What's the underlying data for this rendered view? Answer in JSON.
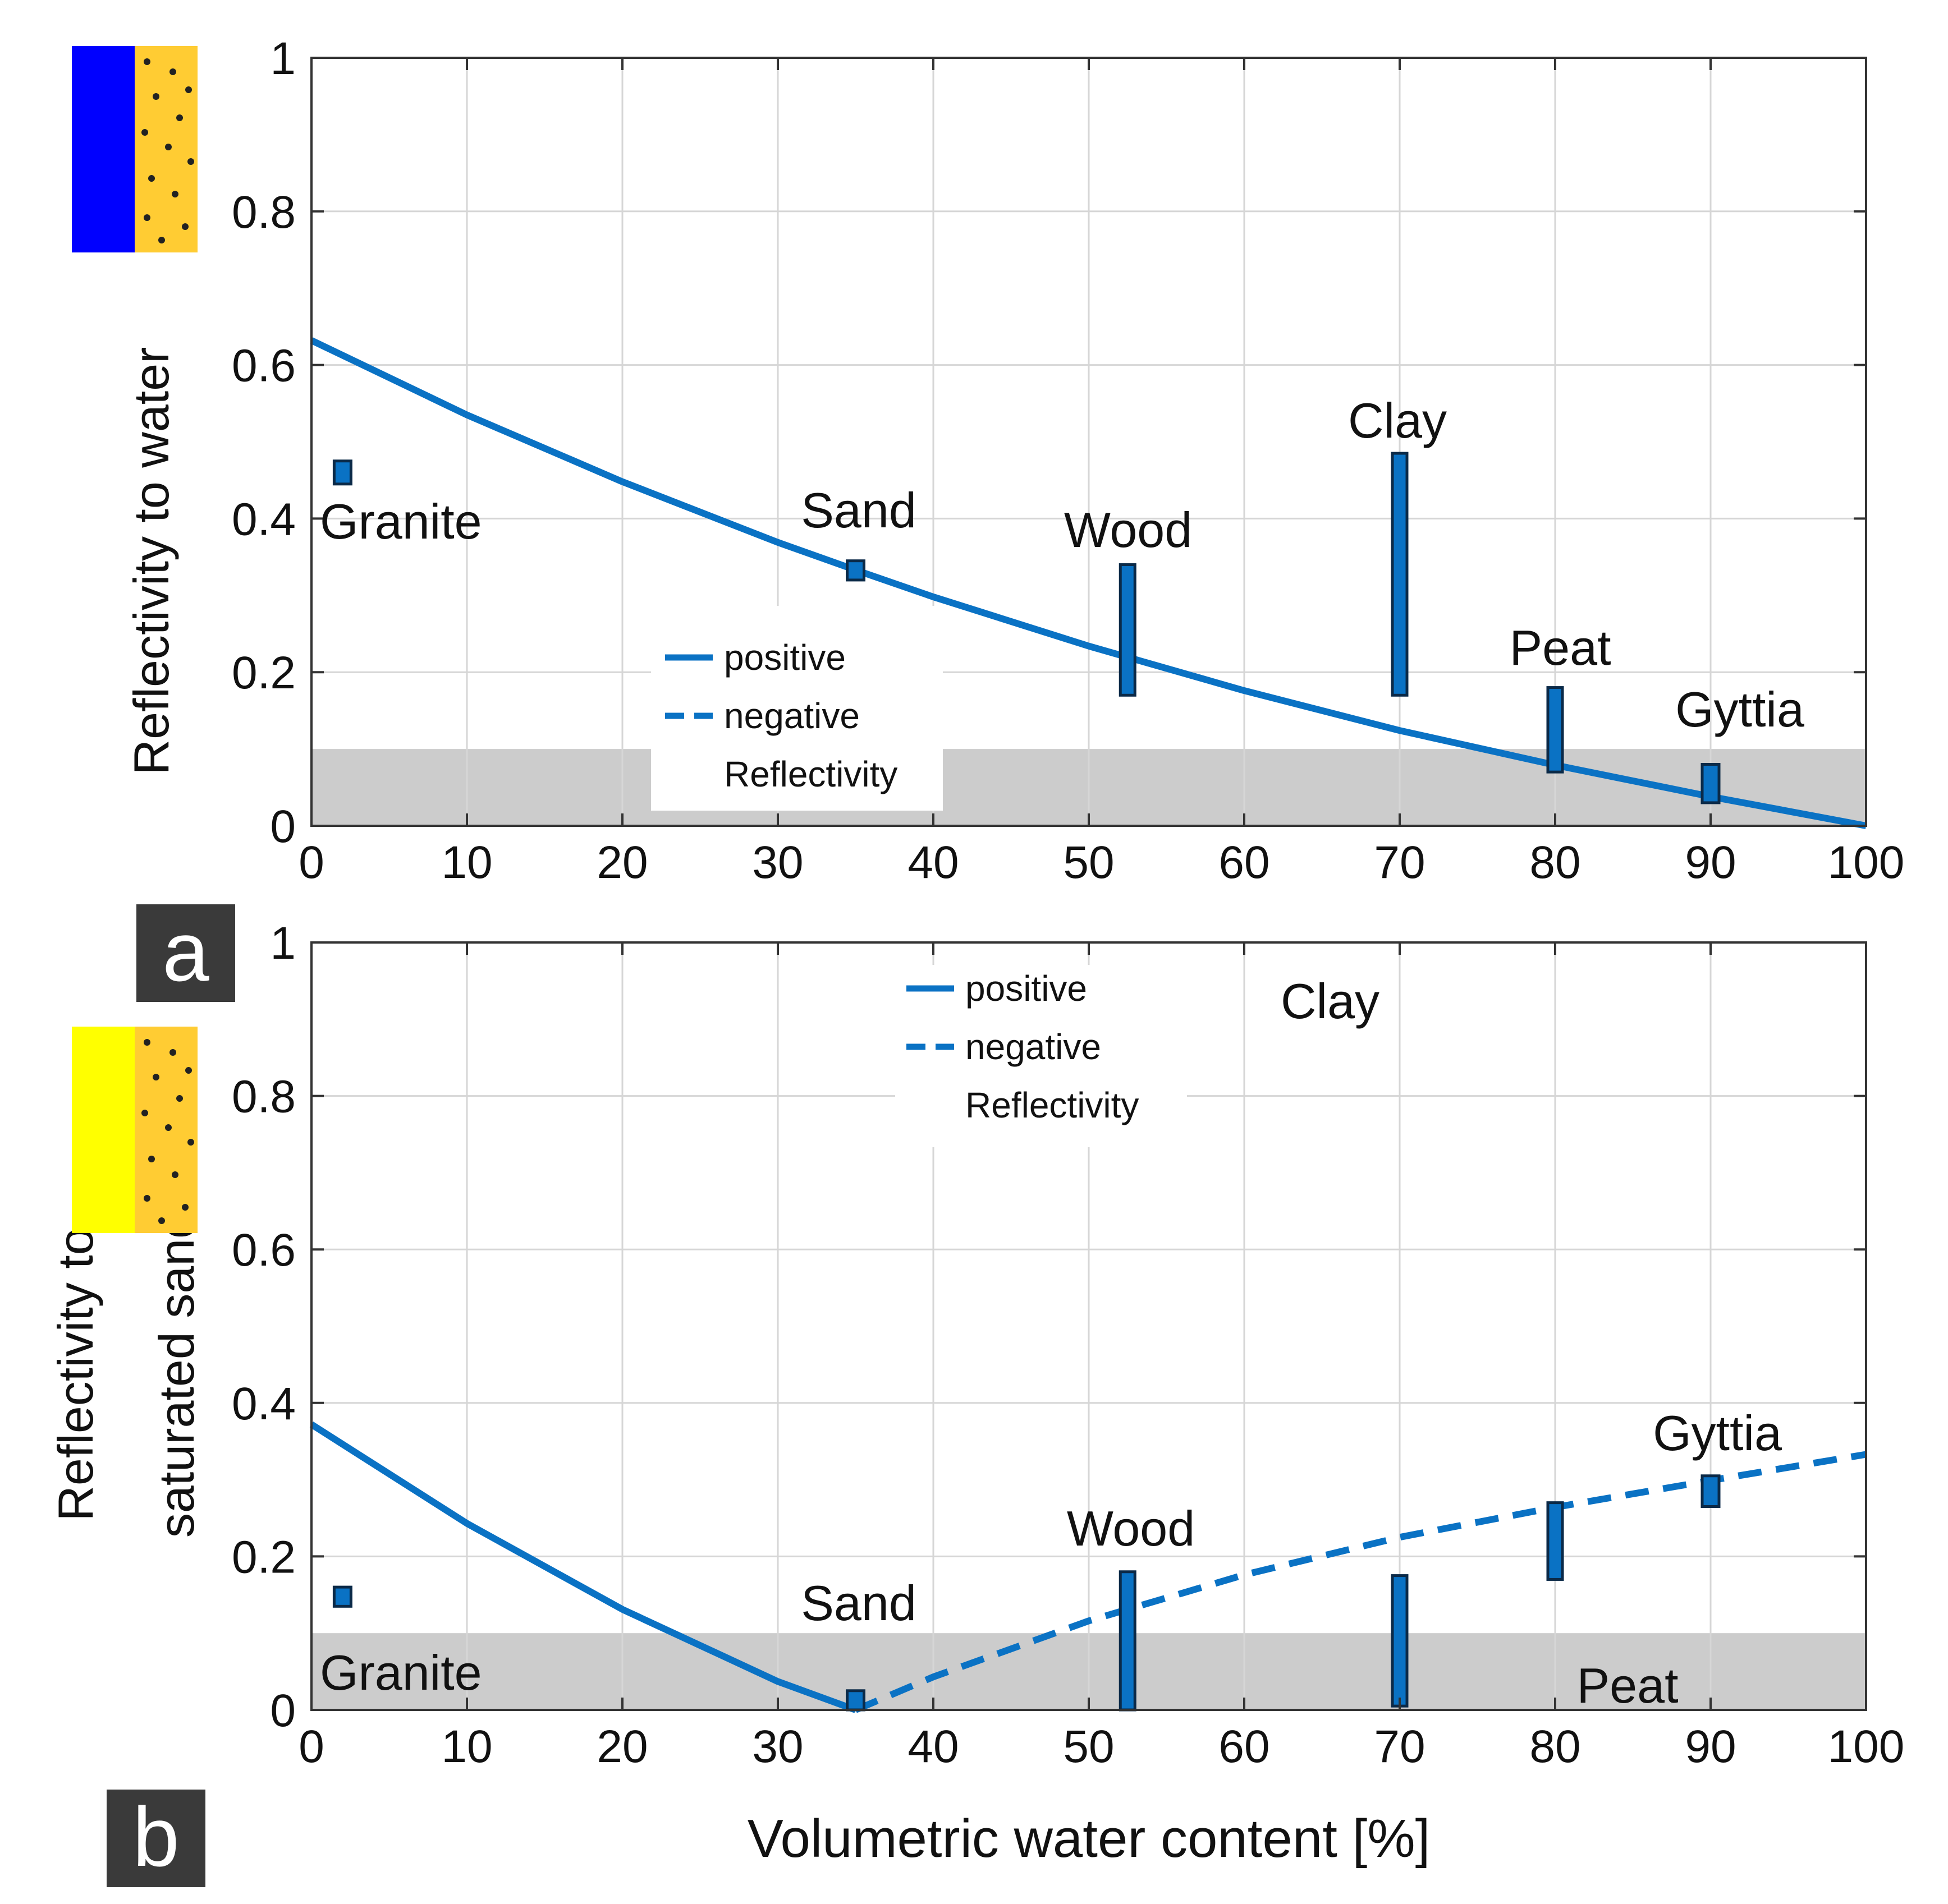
{
  "colors": {
    "curve": "#0a72c4",
    "marker_fill": "#0a72c4",
    "marker_stroke": "#0b2a48",
    "band": "#cccccc",
    "grid": "#d6d6d6",
    "water": "#0000ff",
    "sand": "#ffcc33",
    "saturated_sand": "#ffff00",
    "panel_tag": "#3a3a3a"
  },
  "chart_data": [
    {
      "type": "line",
      "panel": "a",
      "panel_label": "a",
      "ylabel": "Reflectivity to water",
      "xlabel": "",
      "xlim": [
        0,
        100
      ],
      "ylim": [
        0,
        1
      ],
      "xticks": [
        0,
        10,
        20,
        30,
        40,
        50,
        60,
        70,
        80,
        90,
        100
      ],
      "yticks": [
        0,
        0.2,
        0.4,
        0.6,
        0.8,
        1
      ],
      "ytick_labels": [
        "0",
        "0.2",
        "0.4",
        "0.6",
        "0.8",
        "1"
      ],
      "grid": true,
      "band": [
        0,
        0.1
      ],
      "legend": {
        "placement": "lower-center",
        "entries": [
          "positive",
          "negative"
        ],
        "title": "Reflectivity"
      },
      "series": [
        {
          "name": "positive",
          "style": "solid",
          "x": [
            0,
            10,
            20,
            30,
            35,
            40,
            50,
            60,
            70,
            80,
            90,
            100
          ],
          "y": [
            0.632,
            0.535,
            0.448,
            0.369,
            0.333,
            0.298,
            0.234,
            0.176,
            0.124,
            0.079,
            0.038,
            0.0
          ]
        }
      ],
      "materials": [
        {
          "name": "Granite",
          "x": 2,
          "ymin": 0.445,
          "ymax": 0.475
        },
        {
          "name": "Sand",
          "x": 35,
          "ymin": 0.32,
          "ymax": 0.345
        },
        {
          "name": "Wood",
          "x": 52.5,
          "ymin": 0.17,
          "ymax": 0.34
        },
        {
          "name": "Clay",
          "x": 70,
          "ymin": 0.17,
          "ymax": 0.485
        },
        {
          "name": "Peat",
          "x": 80,
          "ymin": 0.07,
          "ymax": 0.18
        },
        {
          "name": "Gyttia",
          "x": 90,
          "ymin": 0.03,
          "ymax": 0.08
        }
      ]
    },
    {
      "type": "line",
      "panel": "b",
      "panel_label": "b",
      "ylabel": [
        "Reflectivity to",
        "saturated sand"
      ],
      "xlabel": "Volumetric water content [%]",
      "xlim": [
        0,
        100
      ],
      "ylim": [
        0,
        1
      ],
      "xticks": [
        0,
        10,
        20,
        30,
        40,
        50,
        60,
        70,
        80,
        90,
        100
      ],
      "yticks": [
        0,
        0.2,
        0.4,
        0.6,
        0.8,
        1
      ],
      "ytick_labels": [
        "0",
        "0.2",
        "0.4",
        "0.6",
        "0.8",
        "1"
      ],
      "grid": true,
      "band": [
        0,
        0.1
      ],
      "legend": {
        "placement": "top-center",
        "entries": [
          "positive",
          "negative"
        ],
        "title": "Reflectivity"
      },
      "series": [
        {
          "name": "positive",
          "style": "solid",
          "x": [
            0,
            10,
            20,
            30,
            35
          ],
          "y": [
            0.372,
            0.243,
            0.131,
            0.037,
            0.0
          ]
        },
        {
          "name": "negative",
          "style": "dashed",
          "x": [
            35,
            40,
            50,
            60,
            70,
            80,
            90,
            100
          ],
          "y": [
            0.0,
            0.043,
            0.116,
            0.176,
            0.225,
            0.264,
            0.299,
            0.333
          ]
        }
      ],
      "materials": [
        {
          "name": "Granite",
          "x": 2,
          "ymin": 0.135,
          "ymax": 0.16
        },
        {
          "name": "Sand",
          "x": 35,
          "ymin": 0.0,
          "ymax": 0.025
        },
        {
          "name": "Wood",
          "x": 52.5,
          "ymin": 0.0,
          "ymax": 0.18
        },
        {
          "name": "Clay",
          "x": 70,
          "ymin": 0.005,
          "ymax": 0.175
        },
        {
          "name": "Peat",
          "x": 80,
          "ymin": 0.17,
          "ymax": 0.27
        },
        {
          "name": "Gyttia",
          "x": 90,
          "ymin": 0.265,
          "ymax": 0.305
        }
      ]
    }
  ]
}
